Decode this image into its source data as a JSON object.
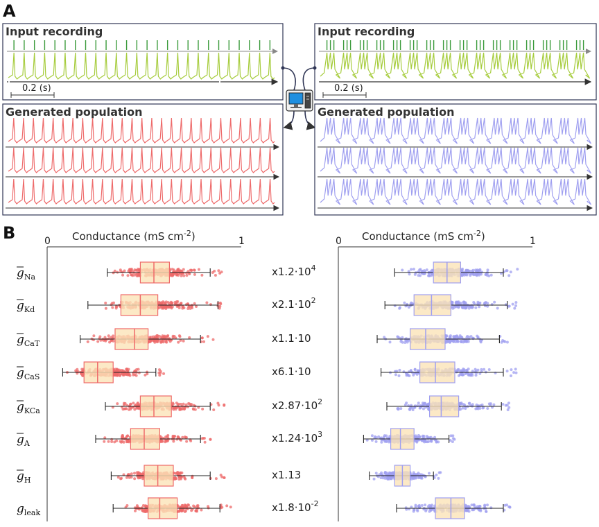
{
  "figure": {
    "panel_a_label": "A",
    "panel_b_label": "B",
    "left_input_title": "Input recording",
    "left_population_title": "Generated population",
    "right_input_title": "Input recording",
    "right_population_title": "Generated population",
    "left_scale": "0.2 (s)",
    "right_scale": "0.2 (s)"
  },
  "colors": {
    "green_dark": "#3a9a3a",
    "green_light": "#a6cc3c",
    "red": "#ee6a6a",
    "blue": "#9f9ff0",
    "box_fill": "#fbe3b8",
    "axis": "#333333",
    "panel_border": "#2f3555"
  },
  "chart_data": [
    {
      "type": "box",
      "title": "Conductance (mS cm",
      "title_sup": "-2",
      "xlim": [
        0,
        1
      ],
      "xtick_labels": [
        "0",
        "1"
      ],
      "color": "#ee6a6a",
      "categories": [
        "Na",
        "Kd",
        "CaT",
        "CaS",
        "KCa",
        "A",
        "H",
        "leak"
      ],
      "boxes": [
        {
          "whisker_low": 0.31,
          "q1": 0.48,
          "median": 0.55,
          "q3": 0.63,
          "whisker_high": 0.84,
          "outlier_max": 0.91
        },
        {
          "whisker_low": 0.21,
          "q1": 0.38,
          "median": 0.48,
          "q3": 0.57,
          "whisker_high": 0.88,
          "outlier_max": 0.9
        },
        {
          "whisker_low": 0.17,
          "q1": 0.35,
          "median": 0.45,
          "q3": 0.52,
          "whisker_high": 0.79,
          "outlier_max": 0.88
        },
        {
          "whisker_low": 0.08,
          "q1": 0.19,
          "median": 0.26,
          "q3": 0.34,
          "whisker_high": 0.56,
          "outlier_max": 0.61
        },
        {
          "whisker_low": 0.3,
          "q1": 0.48,
          "median": 0.55,
          "q3": 0.64,
          "whisker_high": 0.84,
          "outlier_max": 0.92
        },
        {
          "whisker_low": 0.25,
          "q1": 0.43,
          "median": 0.5,
          "q3": 0.58,
          "whisker_high": 0.79,
          "outlier_max": 0.86
        },
        {
          "whisker_low": 0.33,
          "q1": 0.5,
          "median": 0.57,
          "q3": 0.65,
          "whisker_high": 0.84,
          "outlier_max": 0.92
        },
        {
          "whisker_low": 0.34,
          "q1": 0.52,
          "median": 0.58,
          "q3": 0.67,
          "whisker_high": 0.89,
          "outlier_max": 0.95
        }
      ]
    },
    {
      "type": "box",
      "title": "Conductance (mS cm",
      "title_sup": "-2",
      "xlim": [
        0,
        1
      ],
      "xtick_labels": [
        "0",
        "1"
      ],
      "color": "#9f9ff0",
      "categories": [
        "Na",
        "Kd",
        "CaT",
        "CaS",
        "KCa",
        "A",
        "H",
        "leak"
      ],
      "boxes": [
        {
          "whisker_low": 0.29,
          "q1": 0.49,
          "median": 0.56,
          "q3": 0.63,
          "whisker_high": 0.85,
          "outlier_max": 0.93
        },
        {
          "whisker_low": 0.24,
          "q1": 0.39,
          "median": 0.48,
          "q3": 0.58,
          "whisker_high": 0.87,
          "outlier_max": 0.92
        },
        {
          "whisker_low": 0.2,
          "q1": 0.37,
          "median": 0.45,
          "q3": 0.55,
          "whisker_high": 0.83,
          "outlier_max": 0.9
        },
        {
          "whisker_low": 0.22,
          "q1": 0.42,
          "median": 0.5,
          "q3": 0.6,
          "whisker_high": 0.85,
          "outlier_max": 0.92
        },
        {
          "whisker_low": 0.25,
          "q1": 0.47,
          "median": 0.53,
          "q3": 0.62,
          "whisker_high": 0.84,
          "outlier_max": 0.88
        },
        {
          "whisker_low": 0.13,
          "q1": 0.27,
          "median": 0.32,
          "q3": 0.39,
          "whisker_high": 0.57,
          "outlier_max": 0.6
        },
        {
          "whisker_low": 0.16,
          "q1": 0.29,
          "median": 0.33,
          "q3": 0.37,
          "whisker_high": 0.49,
          "outlier_max": 0.53
        },
        {
          "whisker_low": 0.3,
          "q1": 0.5,
          "median": 0.58,
          "q3": 0.65,
          "whisker_high": 0.85,
          "outlier_max": 0.91
        }
      ]
    }
  ],
  "row_labels": [
    {
      "main": "g",
      "sub": "Na",
      "bar": true
    },
    {
      "main": "g",
      "sub": "Kd",
      "bar": true
    },
    {
      "main": "g",
      "sub": "CaT",
      "bar": true
    },
    {
      "main": "g",
      "sub": "CaS",
      "bar": true
    },
    {
      "main": "g",
      "sub": "KCa",
      "bar": true
    },
    {
      "main": "g",
      "sub": "A",
      "bar": true
    },
    {
      "main": "g",
      "sub": "H",
      "bar": true
    },
    {
      "main": "g",
      "sub": "leak",
      "bar": false
    }
  ],
  "scale_factors": [
    {
      "base": "x1.2·10",
      "exp": "4"
    },
    {
      "base": "x2.1·10",
      "exp": "2"
    },
    {
      "base": "x1.1·10",
      "exp": ""
    },
    {
      "base": "x6.1·10",
      "exp": ""
    },
    {
      "base": "x2.87·10",
      "exp": "2"
    },
    {
      "base": "x1.24·10",
      "exp": "3"
    },
    {
      "base": "x1.13",
      "exp": ""
    },
    {
      "base": "x1.8·10",
      "exp": "-2"
    }
  ]
}
